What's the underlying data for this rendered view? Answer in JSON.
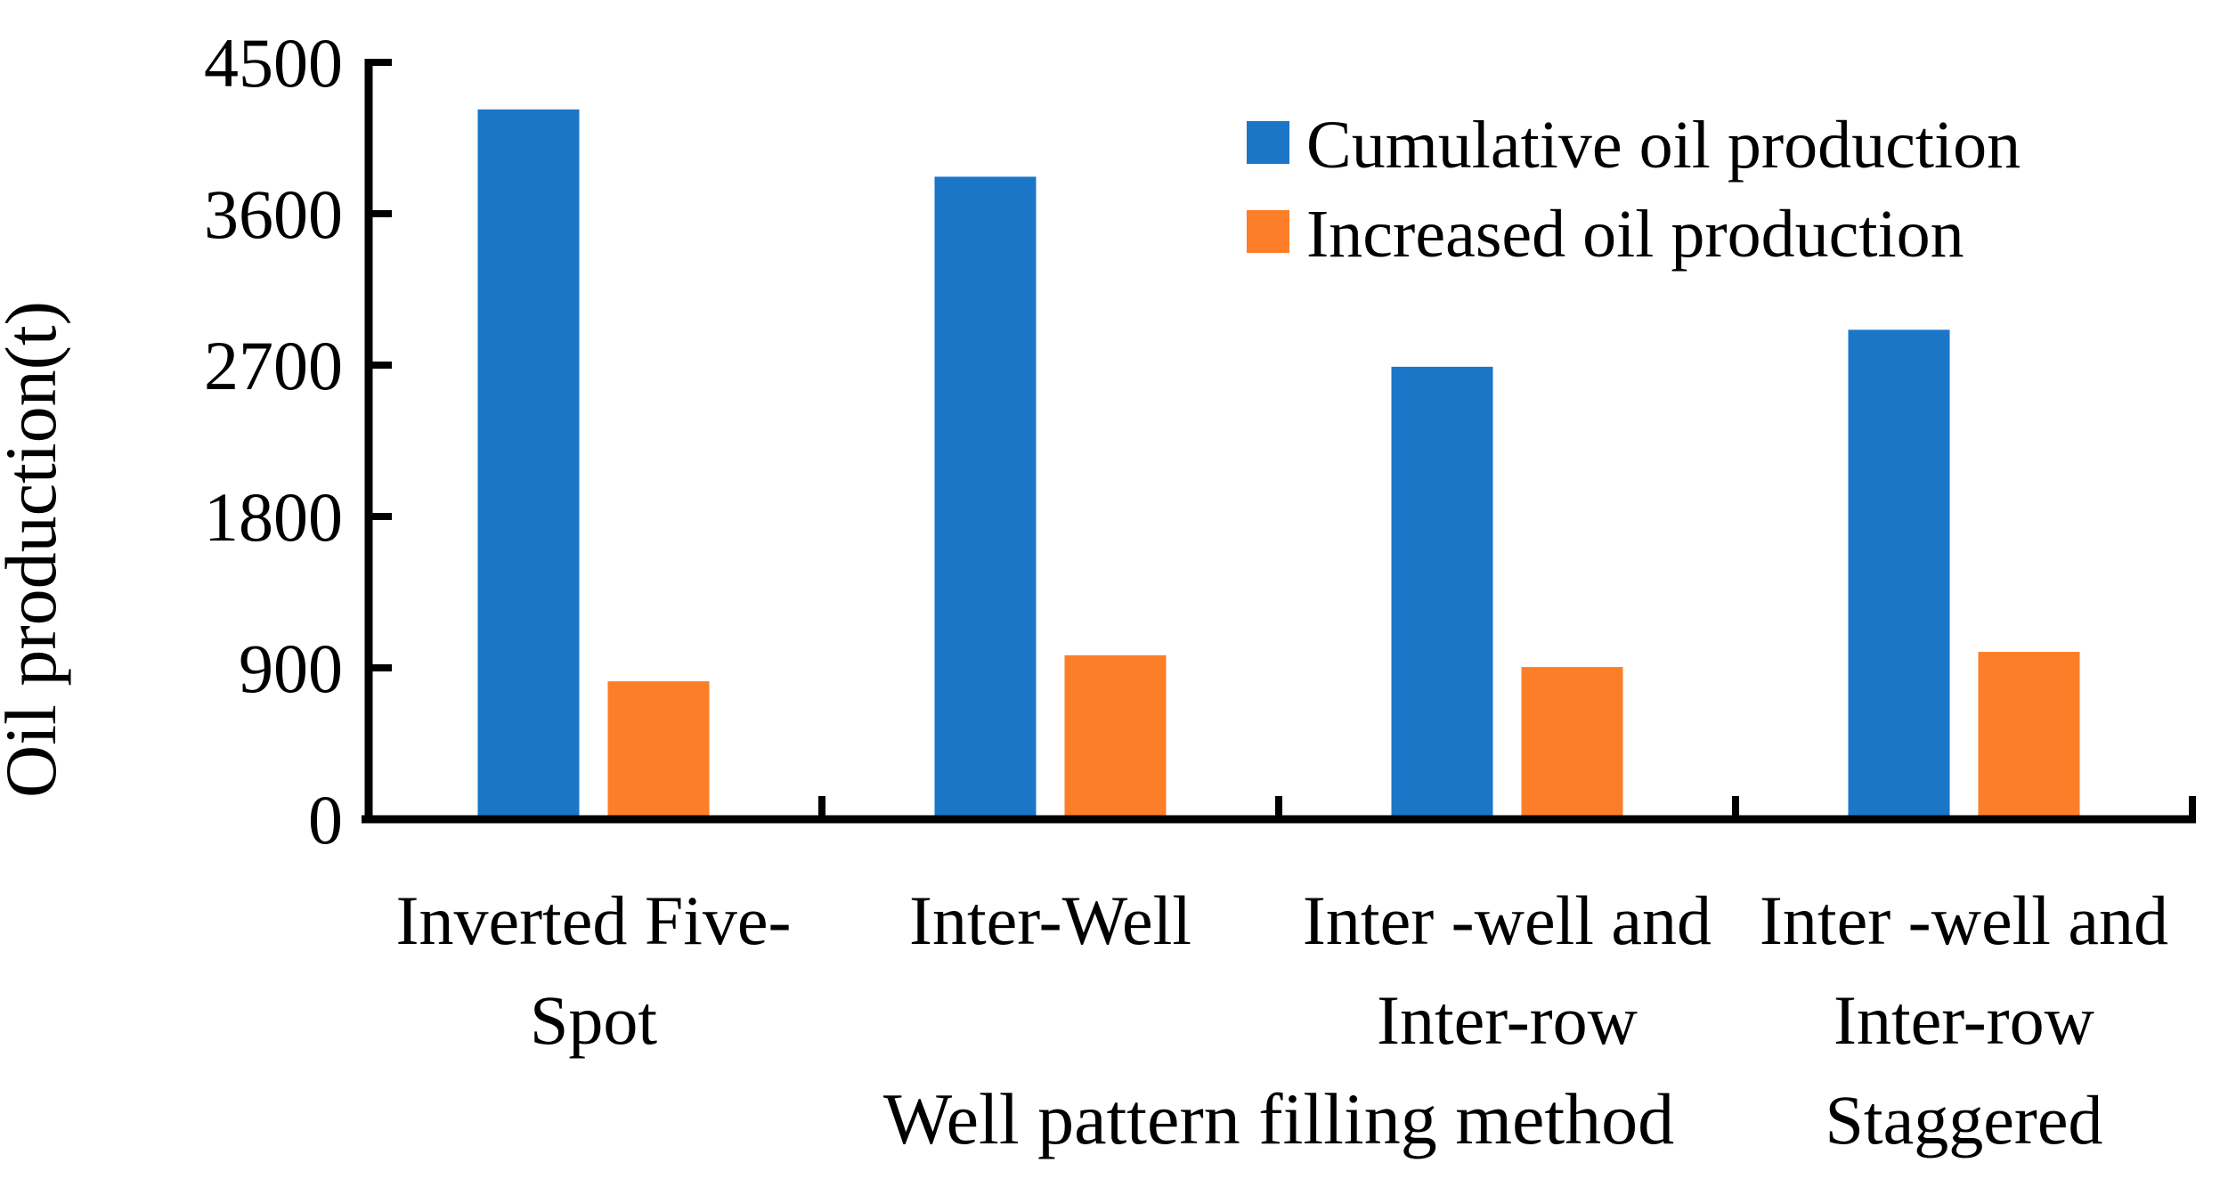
{
  "colors": {
    "cumulative_bar": "#1B76C8",
    "increased_bar": "#FD7E28",
    "axis": "#000000",
    "text": "#000000",
    "background": "#FFFFFF"
  },
  "chart_data": {
    "type": "bar",
    "title": "",
    "xlabel": "Well pattern filling method",
    "ylabel": "Oil production(t)",
    "categories": [
      "Inverted Five-Spot",
      "Inter-Well",
      "Inter -well and Inter-row",
      "Inter -well and Inter-row Staggered"
    ],
    "category_label_lines": [
      [
        "Inverted Five-",
        "Spot"
      ],
      [
        "Inter-Well"
      ],
      [
        "Inter -well and",
        "Inter-row"
      ],
      [
        "Inter -well and",
        "Inter-row",
        "Staggered"
      ]
    ],
    "series": [
      {
        "name": "Cumulative oil production",
        "color": "#1B76C8",
        "values": [
          4220,
          3820,
          2690,
          2910
        ]
      },
      {
        "name": "Increased oil production",
        "color": "#FD7E28",
        "values": [
          820,
          975,
          905,
          995
        ]
      }
    ],
    "ylim": [
      0,
      4500
    ],
    "yticks": [
      0,
      900,
      1800,
      2700,
      3600,
      4500
    ],
    "grid": false,
    "legend_position": "top-right"
  }
}
